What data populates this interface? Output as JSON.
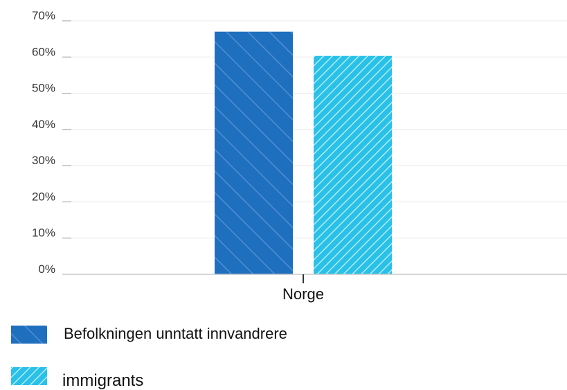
{
  "chart_data": {
    "type": "bar",
    "categories": [
      "Norge"
    ],
    "series": [
      {
        "name": "Befolkningen unntatt innvandrere",
        "values": [
          67
        ],
        "color": "#1f6fbf",
        "pattern": "hatch-wide"
      },
      {
        "name": "immigrants",
        "values": [
          60.3
        ],
        "color": "#29c1e8",
        "pattern": "hatch-dense"
      }
    ],
    "ylim": [
      0,
      70
    ],
    "yticks": [
      0,
      10,
      20,
      30,
      40,
      50,
      60,
      70
    ],
    "ytick_labels": [
      "0%",
      "10%",
      "20%",
      "30%",
      "40%",
      "50%",
      "60%",
      "70%"
    ],
    "grid": true,
    "legend_position": "bottom-left",
    "title": "",
    "xlabel": "",
    "ylabel": ""
  }
}
